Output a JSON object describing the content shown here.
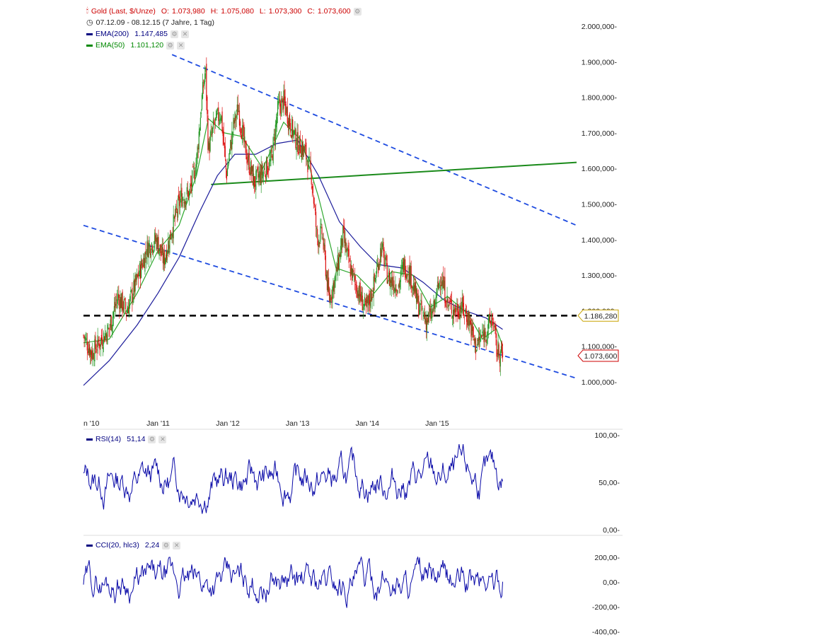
{
  "legend": {
    "main": {
      "text": "Gold (Last, $/Unze)",
      "o_label": "O:",
      "o": "1.073,980",
      "h_label": "H:",
      "h": "1.075,080",
      "l_label": "L:",
      "l": "1.073,300",
      "c_label": "C:",
      "c": "1.073,600",
      "color": "#cc0000"
    },
    "period": "07.12.09 - 08.12.15 (7 Jahre, 1 Tag)",
    "ema200": {
      "text": "EMA(200)",
      "value": "1.147,485",
      "color": "#000080"
    },
    "ema50": {
      "text": "EMA(50)",
      "value": "1.101,120",
      "color": "#008800"
    },
    "rsi": {
      "text": "RSI(14)",
      "value": "51,14",
      "color": "#000080"
    },
    "cci": {
      "text": "CCI(20, hlc3)",
      "value": "2,24",
      "color": "#000080"
    }
  },
  "chart_data": [
    {
      "type": "candlestick",
      "title": "Gold (Last, $/Unze)",
      "ylim": [
        950,
        2050
      ],
      "y_ticks": [
        "2.000,000",
        "1.900,000",
        "1.800,000",
        "1.700,000",
        "1.600,000",
        "1.500,000",
        "1.400,000",
        "1.300,000",
        "1.200,000",
        "1.100,000",
        "1.000,000"
      ],
      "x_ticks": [
        "n '10",
        "Jan '11",
        "Jan '12",
        "Jan '13",
        "Jan '14",
        "Jan '15"
      ],
      "price_points": [
        {
          "x": 2009.93,
          "y": 1130
        },
        {
          "x": 2010.05,
          "y": 1080
        },
        {
          "x": 2010.15,
          "y": 1110
        },
        {
          "x": 2010.3,
          "y": 1150
        },
        {
          "x": 2010.42,
          "y": 1240
        },
        {
          "x": 2010.55,
          "y": 1200
        },
        {
          "x": 2010.72,
          "y": 1300
        },
        {
          "x": 2010.85,
          "y": 1380
        },
        {
          "x": 2010.98,
          "y": 1400
        },
        {
          "x": 2011.08,
          "y": 1340
        },
        {
          "x": 2011.2,
          "y": 1430
        },
        {
          "x": 2011.33,
          "y": 1520
        },
        {
          "x": 2011.45,
          "y": 1530
        },
        {
          "x": 2011.55,
          "y": 1620
        },
        {
          "x": 2011.63,
          "y": 1800
        },
        {
          "x": 2011.68,
          "y": 1880
        },
        {
          "x": 2011.72,
          "y": 1650
        },
        {
          "x": 2011.8,
          "y": 1720
        },
        {
          "x": 2011.9,
          "y": 1760
        },
        {
          "x": 2011.98,
          "y": 1580
        },
        {
          "x": 2012.08,
          "y": 1720
        },
        {
          "x": 2012.15,
          "y": 1770
        },
        {
          "x": 2012.25,
          "y": 1650
        },
        {
          "x": 2012.38,
          "y": 1560
        },
        {
          "x": 2012.5,
          "y": 1590
        },
        {
          "x": 2012.62,
          "y": 1620
        },
        {
          "x": 2012.72,
          "y": 1770
        },
        {
          "x": 2012.8,
          "y": 1790
        },
        {
          "x": 2012.9,
          "y": 1720
        },
        {
          "x": 2013.0,
          "y": 1670
        },
        {
          "x": 2013.1,
          "y": 1650
        },
        {
          "x": 2013.2,
          "y": 1580
        },
        {
          "x": 2013.28,
          "y": 1400
        },
        {
          "x": 2013.35,
          "y": 1420
        },
        {
          "x": 2013.45,
          "y": 1230
        },
        {
          "x": 2013.55,
          "y": 1300
        },
        {
          "x": 2013.65,
          "y": 1410
        },
        {
          "x": 2013.75,
          "y": 1320
        },
        {
          "x": 2013.88,
          "y": 1250
        },
        {
          "x": 2013.98,
          "y": 1200
        },
        {
          "x": 2014.08,
          "y": 1260
        },
        {
          "x": 2014.2,
          "y": 1380
        },
        {
          "x": 2014.3,
          "y": 1290
        },
        {
          "x": 2014.45,
          "y": 1270
        },
        {
          "x": 2014.52,
          "y": 1330
        },
        {
          "x": 2014.62,
          "y": 1300
        },
        {
          "x": 2014.72,
          "y": 1220
        },
        {
          "x": 2014.85,
          "y": 1170
        },
        {
          "x": 2014.95,
          "y": 1200
        },
        {
          "x": 2015.05,
          "y": 1300
        },
        {
          "x": 2015.15,
          "y": 1220
        },
        {
          "x": 2015.25,
          "y": 1200
        },
        {
          "x": 2015.35,
          "y": 1210
        },
        {
          "x": 2015.45,
          "y": 1180
        },
        {
          "x": 2015.55,
          "y": 1100
        },
        {
          "x": 2015.62,
          "y": 1120
        },
        {
          "x": 2015.72,
          "y": 1150
        },
        {
          "x": 2015.8,
          "y": 1180
        },
        {
          "x": 2015.85,
          "y": 1090
        },
        {
          "x": 2015.94,
          "y": 1073.6
        }
      ],
      "ema50_points": [
        {
          "x": 2009.93,
          "y": 1110
        },
        {
          "x": 2010.3,
          "y": 1120
        },
        {
          "x": 2010.7,
          "y": 1250
        },
        {
          "x": 2011.0,
          "y": 1370
        },
        {
          "x": 2011.3,
          "y": 1440
        },
        {
          "x": 2011.55,
          "y": 1580
        },
        {
          "x": 2011.72,
          "y": 1740
        },
        {
          "x": 2011.95,
          "y": 1700
        },
        {
          "x": 2012.2,
          "y": 1690
        },
        {
          "x": 2012.5,
          "y": 1600
        },
        {
          "x": 2012.8,
          "y": 1730
        },
        {
          "x": 2013.05,
          "y": 1680
        },
        {
          "x": 2013.3,
          "y": 1520
        },
        {
          "x": 2013.55,
          "y": 1320
        },
        {
          "x": 2013.85,
          "y": 1300
        },
        {
          "x": 2014.1,
          "y": 1250
        },
        {
          "x": 2014.35,
          "y": 1310
        },
        {
          "x": 2014.65,
          "y": 1300
        },
        {
          "x": 2014.9,
          "y": 1210
        },
        {
          "x": 2015.15,
          "y": 1240
        },
        {
          "x": 2015.45,
          "y": 1190
        },
        {
          "x": 2015.65,
          "y": 1120
        },
        {
          "x": 2015.85,
          "y": 1150
        },
        {
          "x": 2015.94,
          "y": 1101.12
        }
      ],
      "ema200_points": [
        {
          "x": 2009.93,
          "y": 990
        },
        {
          "x": 2010.3,
          "y": 1060
        },
        {
          "x": 2010.7,
          "y": 1160
        },
        {
          "x": 2011.0,
          "y": 1250
        },
        {
          "x": 2011.3,
          "y": 1350
        },
        {
          "x": 2011.6,
          "y": 1480
        },
        {
          "x": 2011.85,
          "y": 1580
        },
        {
          "x": 2012.1,
          "y": 1640
        },
        {
          "x": 2012.4,
          "y": 1640
        },
        {
          "x": 2012.7,
          "y": 1670
        },
        {
          "x": 2013.0,
          "y": 1680
        },
        {
          "x": 2013.3,
          "y": 1580
        },
        {
          "x": 2013.6,
          "y": 1450
        },
        {
          "x": 2013.9,
          "y": 1380
        },
        {
          "x": 2014.15,
          "y": 1330
        },
        {
          "x": 2014.5,
          "y": 1320
        },
        {
          "x": 2014.8,
          "y": 1280
        },
        {
          "x": 2015.1,
          "y": 1230
        },
        {
          "x": 2015.4,
          "y": 1200
        },
        {
          "x": 2015.7,
          "y": 1180
        },
        {
          "x": 2015.94,
          "y": 1147.485
        }
      ],
      "annotations": {
        "support_level": 1186.28,
        "support_label": "1.186,280",
        "last_price_label": "1.073,600",
        "upper_channel": [
          {
            "x": 2011.2,
            "y": 1920
          },
          {
            "x": 2017.0,
            "y": 1440
          }
        ],
        "lower_channel": [
          {
            "x": 2009.93,
            "y": 1440
          },
          {
            "x": 2017.0,
            "y": 1010
          }
        ],
        "green_trendline": [
          {
            "x": 2011.76,
            "y": 1555
          },
          {
            "x": 2017.0,
            "y": 1617
          }
        ]
      }
    },
    {
      "type": "line",
      "title": "RSI(14)",
      "ylim": [
        0,
        100
      ],
      "y_ticks": [
        "100,00",
        "50,00",
        "0,00"
      ],
      "last_value": 51.14
    },
    {
      "type": "line",
      "title": "CCI(20, hlc3)",
      "ylim": [
        -400,
        200
      ],
      "y_ticks": [
        "200,00",
        "0,00",
        "-200,00",
        "-400,00"
      ],
      "last_value": 2.24
    }
  ]
}
